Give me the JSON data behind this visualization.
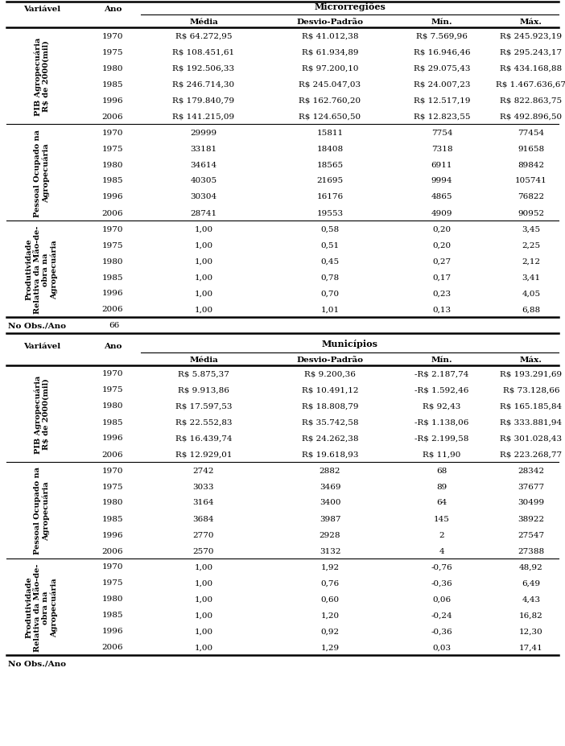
{
  "section1_header": "Microrregiões",
  "section2_header": "Municípios",
  "rows_micro": [
    {
      "variavel": "PIB Agropecuária\nR$ de 2000(mil)",
      "rows": [
        [
          "1970",
          "R$ 64.272,95",
          "R$ 41.012,38",
          "R$ 7.569,96",
          "R$ 245.923,19"
        ],
        [
          "1975",
          "R$ 108.451,61",
          "R$ 61.934,89",
          "R$ 16.946,46",
          "R$ 295.243,17"
        ],
        [
          "1980",
          "R$ 192.506,33",
          "R$ 97.200,10",
          "R$ 29.075,43",
          "R$ 434.168,88"
        ],
        [
          "1985",
          "R$ 246.714,30",
          "R$ 245.047,03",
          "R$ 24.007,23",
          "R$ 1.467.636,67"
        ],
        [
          "1996",
          "R$ 179.840,79",
          "R$ 162.760,20",
          "R$ 12.517,19",
          "R$ 822.863,75"
        ],
        [
          "2006",
          "R$ 141.215,09",
          "R$ 124.650,50",
          "R$ 12.823,55",
          "R$ 492.896,50"
        ]
      ]
    },
    {
      "variavel": "Pessoal Ocupado na\nAgropecuária",
      "rows": [
        [
          "1970",
          "29999",
          "15811",
          "7754",
          "77454"
        ],
        [
          "1975",
          "33181",
          "18408",
          "7318",
          "91658"
        ],
        [
          "1980",
          "34614",
          "18565",
          "6911",
          "89842"
        ],
        [
          "1985",
          "40305",
          "21695",
          "9994",
          "105741"
        ],
        [
          "1996",
          "30304",
          "16176",
          "4865",
          "76822"
        ],
        [
          "2006",
          "28741",
          "19553",
          "4909",
          "90952"
        ]
      ]
    },
    {
      "variavel": "Produtividade\nRelativa da Mão-de-\nobra na\nAgropecuária",
      "rows": [
        [
          "1970",
          "1,00",
          "0,58",
          "0,20",
          "3,45"
        ],
        [
          "1975",
          "1,00",
          "0,51",
          "0,20",
          "2,25"
        ],
        [
          "1980",
          "1,00",
          "0,45",
          "0,27",
          "2,12"
        ],
        [
          "1985",
          "1,00",
          "0,78",
          "0,17",
          "3,41"
        ],
        [
          "1996",
          "1,00",
          "0,70",
          "0,23",
          "4,05"
        ],
        [
          "2006",
          "1,00",
          "1,01",
          "0,13",
          "6,88"
        ]
      ]
    }
  ],
  "rows_munic": [
    {
      "variavel": "PIB Agropecuária\nR$ de 2000(mil)",
      "rows": [
        [
          "1970",
          "R$ 5.875,37",
          "R$ 9.200,36",
          "-R$ 2.187,74",
          "R$ 193.291,69"
        ],
        [
          "1975",
          "R$ 9.913,86",
          "R$ 10.491,12",
          "-R$ 1.592,46",
          "R$ 73.128,66"
        ],
        [
          "1980",
          "R$ 17.597,53",
          "R$ 18.808,79",
          "R$ 92,43",
          "R$ 165.185,84"
        ],
        [
          "1985",
          "R$ 22.552,83",
          "R$ 35.742,58",
          "-R$ 1.138,06",
          "R$ 333.881,94"
        ],
        [
          "1996",
          "R$ 16.439,74",
          "R$ 24.262,38",
          "-R$ 2.199,58",
          "R$ 301.028,43"
        ],
        [
          "2006",
          "R$ 12.929,01",
          "R$ 19.618,93",
          "R$ 11,90",
          "R$ 223.268,77"
        ]
      ]
    },
    {
      "variavel": "Pessoal Ocupado na\nAgropecuária",
      "rows": [
        [
          "1970",
          "2742",
          "2882",
          "68",
          "28342"
        ],
        [
          "1975",
          "3033",
          "3469",
          "89",
          "37677"
        ],
        [
          "1980",
          "3164",
          "3400",
          "64",
          "30499"
        ],
        [
          "1985",
          "3684",
          "3987",
          "145",
          "38922"
        ],
        [
          "1996",
          "2770",
          "2928",
          "2",
          "27547"
        ],
        [
          "2006",
          "2570",
          "3132",
          "4",
          "27388"
        ]
      ]
    },
    {
      "variavel": "Produtividade\nRelativa da Mão-de-\nobra na\nAgropecuária",
      "rows": [
        [
          "1970",
          "1,00",
          "1,92",
          "-0,76",
          "48,92"
        ],
        [
          "1975",
          "1,00",
          "0,76",
          "-0,36",
          "6,49"
        ],
        [
          "1980",
          "1,00",
          "0,60",
          "0,06",
          "4,43"
        ],
        [
          "1985",
          "1,00",
          "1,20",
          "-0,24",
          "16,82"
        ],
        [
          "1996",
          "1,00",
          "0,92",
          "-0,36",
          "12,30"
        ],
        [
          "2006",
          "1,00",
          "1,29",
          "0,03",
          "17,41"
        ]
      ]
    }
  ],
  "font_size": 7.5,
  "bold_size": 7.5,
  "bg_color": "white",
  "line_color": "black"
}
